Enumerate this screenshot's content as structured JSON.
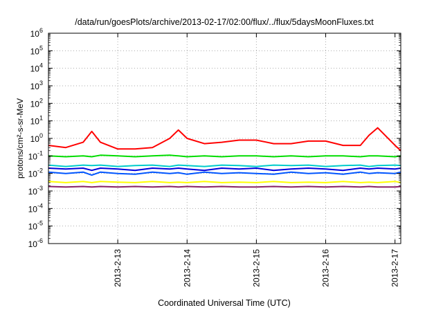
{
  "chart_data": {
    "type": "line",
    "title": "/data/run/goesPlots/archive/2013-02-17/02:00/flux/../flux/5daysMoonFluxes.txt",
    "xlabel": "Coordinated Universal Time (UTC)",
    "ylabel": "protons/cm²-s-sr-MeV",
    "yscale": "log",
    "ylim_exp": [
      -6,
      6
    ],
    "xlim": [
      "2013-02-12T00:00",
      "2013-02-17T02:00"
    ],
    "x_ticks": [
      {
        "label": "2013-2-13",
        "at": "2013-02-13T00:00"
      },
      {
        "label": "2013-2-14",
        "at": "2013-02-14T00:00"
      },
      {
        "label": "2013-2-15",
        "at": "2013-02-15T00:00"
      },
      {
        "label": "2013-2-16",
        "at": "2013-02-16T00:00"
      },
      {
        "label": "2013-2-17",
        "at": "2013-02-17T00:00"
      }
    ],
    "y_ticks": [
      {
        "base": "10",
        "exp": "6"
      },
      {
        "base": "10",
        "exp": "5"
      },
      {
        "base": "10",
        "exp": "4"
      },
      {
        "base": "10",
        "exp": "3"
      },
      {
        "base": "10",
        "exp": "2"
      },
      {
        "base": "10",
        "exp": "1"
      },
      {
        "base": "10",
        "exp": "0"
      },
      {
        "base": "10",
        "exp": "-1"
      },
      {
        "base": "10",
        "exp": "-2"
      },
      {
        "base": "10",
        "exp": "-3"
      },
      {
        "base": "10",
        "exp": "-4"
      },
      {
        "base": "10",
        "exp": "-5"
      },
      {
        "base": "10",
        "exp": "-6"
      }
    ],
    "grid": true,
    "x": [
      "2013-02-12T00:00",
      "2013-02-12T06:00",
      "2013-02-12T12:00",
      "2013-02-12T15:00",
      "2013-02-12T18:00",
      "2013-02-13T00:00",
      "2013-02-13T06:00",
      "2013-02-13T12:00",
      "2013-02-13T18:00",
      "2013-02-13T21:00",
      "2013-02-14T00:00",
      "2013-02-14T06:00",
      "2013-02-14T12:00",
      "2013-02-14T18:00",
      "2013-02-15T00:00",
      "2013-02-15T06:00",
      "2013-02-15T12:00",
      "2013-02-15T18:00",
      "2013-02-16T00:00",
      "2013-02-16T06:00",
      "2013-02-16T12:00",
      "2013-02-16T15:00",
      "2013-02-16T18:00",
      "2013-02-17T00:00",
      "2013-02-17T02:00"
    ],
    "series": [
      {
        "color": "#ff0000",
        "values": [
          0.4,
          0.3,
          0.6,
          2.5,
          0.6,
          0.25,
          0.25,
          0.3,
          1.0,
          3.0,
          1.0,
          0.5,
          0.6,
          0.8,
          0.8,
          0.5,
          0.5,
          0.7,
          0.7,
          0.4,
          0.4,
          1.5,
          4.0,
          0.4,
          0.2
        ]
      },
      {
        "color": "#00dd00",
        "values": [
          0.1,
          0.09,
          0.1,
          0.09,
          0.11,
          0.1,
          0.09,
          0.1,
          0.11,
          0.1,
          0.09,
          0.1,
          0.09,
          0.1,
          0.1,
          0.09,
          0.1,
          0.09,
          0.1,
          0.1,
          0.09,
          0.1,
          0.1,
          0.09,
          0.1
        ]
      },
      {
        "color": "#00cccc",
        "values": [
          0.03,
          0.025,
          0.03,
          0.028,
          0.03,
          0.025,
          0.028,
          0.03,
          0.025,
          0.03,
          0.028,
          0.025,
          0.03,
          0.028,
          0.025,
          0.03,
          0.028,
          0.03,
          0.025,
          0.028,
          0.03,
          0.025,
          0.028,
          0.03,
          0.028
        ]
      },
      {
        "color": "#0000dd",
        "values": [
          0.02,
          0.018,
          0.02,
          0.015,
          0.02,
          0.018,
          0.015,
          0.02,
          0.018,
          0.02,
          0.018,
          0.015,
          0.02,
          0.018,
          0.02,
          0.015,
          0.018,
          0.02,
          0.018,
          0.015,
          0.02,
          0.018,
          0.02,
          0.018,
          0.02
        ]
      },
      {
        "color": "#0055ff",
        "values": [
          0.012,
          0.01,
          0.012,
          0.008,
          0.012,
          0.01,
          0.009,
          0.012,
          0.01,
          0.011,
          0.009,
          0.012,
          0.01,
          0.011,
          0.01,
          0.009,
          0.012,
          0.01,
          0.011,
          0.009,
          0.012,
          0.01,
          0.011,
          0.01,
          0.012
        ]
      },
      {
        "color": "#ffff00",
        "values": [
          0.0035,
          0.003,
          0.0035,
          0.003,
          0.0035,
          0.0032,
          0.003,
          0.0035,
          0.003,
          0.0032,
          0.003,
          0.0035,
          0.003,
          0.0032,
          0.003,
          0.0035,
          0.003,
          0.0032,
          0.003,
          0.0035,
          0.003,
          0.0032,
          0.003,
          0.0035,
          0.003
        ]
      },
      {
        "color": "#882266",
        "values": [
          0.0018,
          0.0017,
          0.0018,
          0.0017,
          0.0018,
          0.0017,
          0.0018,
          0.0017,
          0.0018,
          0.0017,
          0.0018,
          0.0017,
          0.0018,
          0.0017,
          0.0017,
          0.0018,
          0.0017,
          0.0018,
          0.0017,
          0.0018,
          0.0017,
          0.0018,
          0.0017,
          0.0017,
          0.0018
        ]
      }
    ]
  }
}
